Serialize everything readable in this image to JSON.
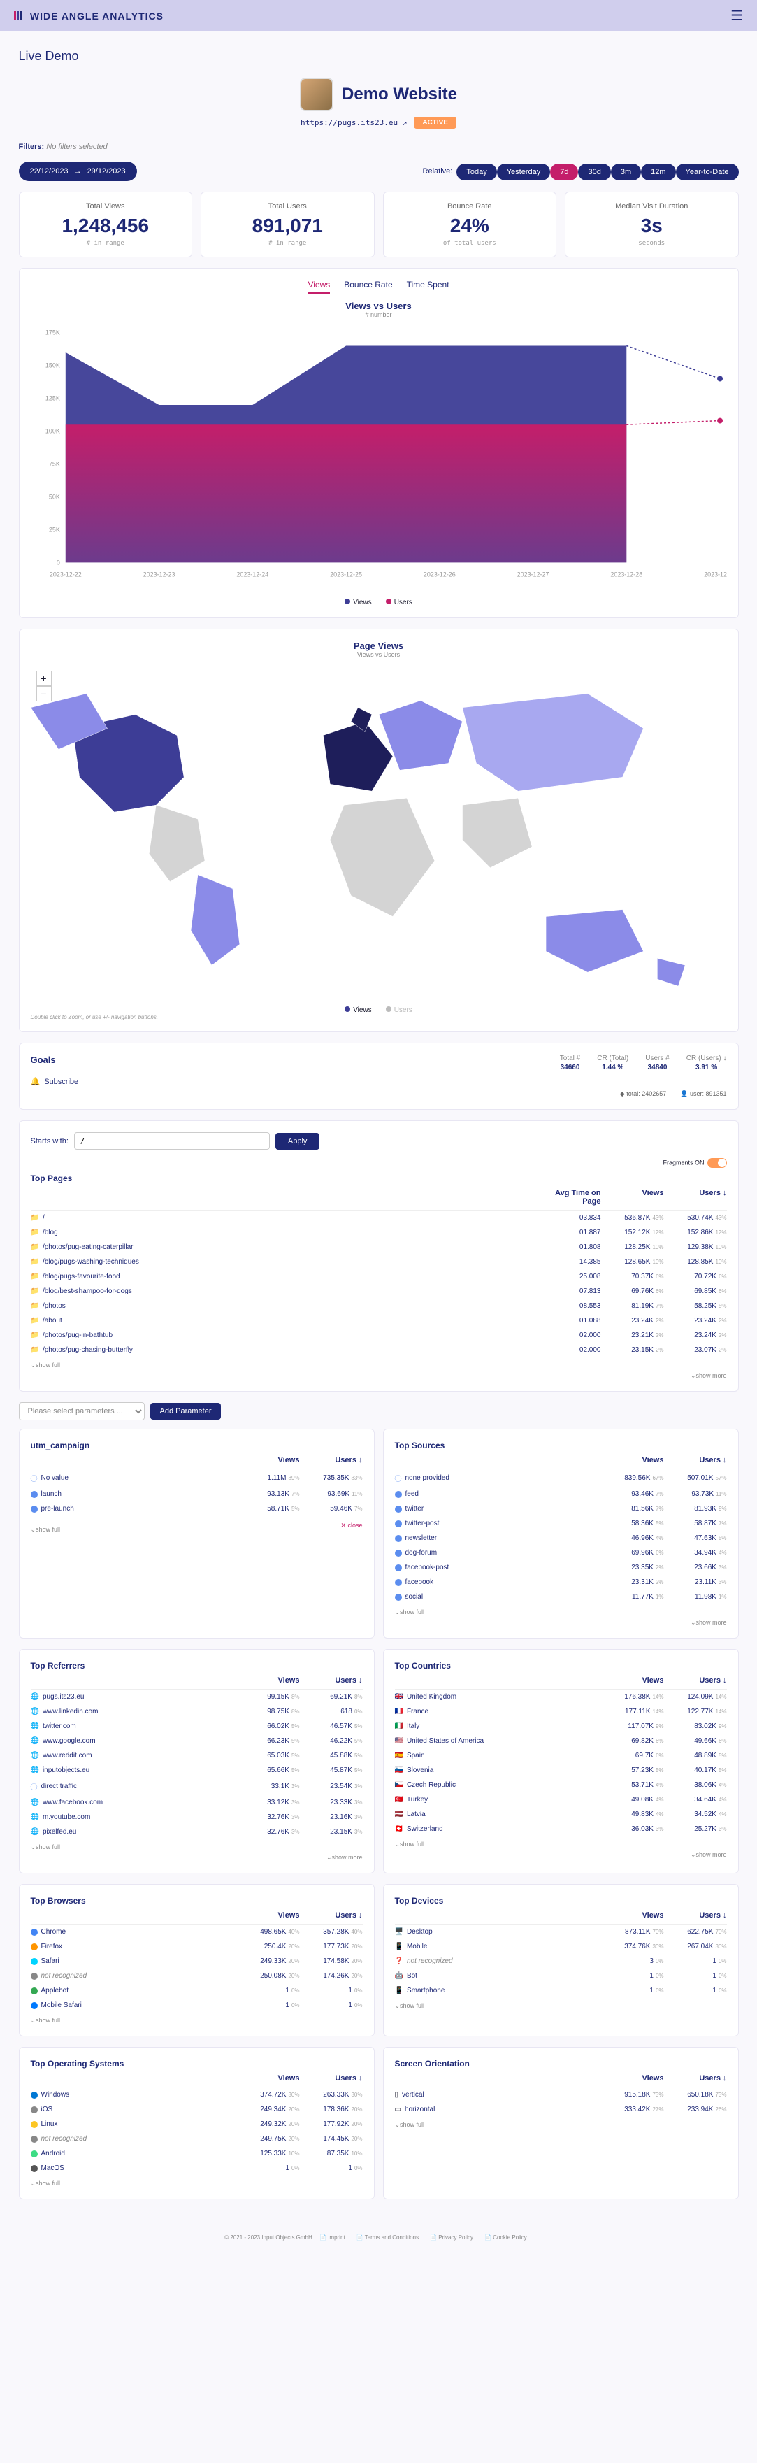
{
  "brand": "WIDE ANGLE ANALYTICS",
  "page_title": "Live Demo",
  "site": {
    "name": "Demo Website",
    "url": "https://pugs.its23.eu",
    "status": "ACTIVE"
  },
  "filters": {
    "label": "Filters:",
    "value": "No filters selected"
  },
  "date": {
    "from": "22/12/2023",
    "to": "29/12/2023",
    "relative_label": "Relative:",
    "pills": [
      "Today",
      "Yesterday",
      "7d",
      "30d",
      "3m",
      "12m",
      "Year-to-Date"
    ],
    "active_idx": 2
  },
  "stats": [
    {
      "label": "Total Views",
      "value": "1,248,456",
      "sub": "# in range"
    },
    {
      "label": "Total Users",
      "value": "891,071",
      "sub": "# in range"
    },
    {
      "label": "Bounce Rate",
      "value": "24%",
      "sub": "of total users"
    },
    {
      "label": "Median Visit Duration",
      "value": "3s",
      "sub": "seconds"
    }
  ],
  "main_chart": {
    "tabs": [
      "Views",
      "Bounce Rate",
      "Time Spent"
    ],
    "active_tab": 0,
    "title": "Views vs Users",
    "sub": "# number",
    "x_labels": [
      "2023-12-22",
      "2023-12-23",
      "2023-12-24",
      "2023-12-25",
      "2023-12-26",
      "2023-12-27",
      "2023-12-28",
      "2023-12-29"
    ],
    "y_ticks": [
      0,
      "25K",
      "50K",
      "75K",
      "100K",
      "125K",
      "150K",
      "175K"
    ],
    "views": [
      160000,
      120000,
      120000,
      165000,
      165000,
      165000,
      165000,
      140000
    ],
    "users": [
      105000,
      105000,
      105000,
      105000,
      105000,
      105000,
      105000,
      108000
    ],
    "colors": {
      "views": "#3d3d96",
      "users": "#c41e6a"
    }
  },
  "map": {
    "title": "Page Views",
    "sub": "Views vs Users",
    "note": "Double click to Zoom, or use +/- navigation buttons.",
    "legend": [
      {
        "label": "Views",
        "color": "#3d3d96"
      },
      {
        "label": "Users",
        "color": "#bbb"
      }
    ]
  },
  "goals": {
    "title": "Goals",
    "cols": [
      {
        "label": "Total #",
        "val": "34660"
      },
      {
        "label": "CR (Total)",
        "val": "1.44 %"
      },
      {
        "label": "Users #",
        "val": "34840"
      },
      {
        "label": "CR (Users) ↓",
        "val": "3.91 %"
      }
    ],
    "items": [
      {
        "icon": "🔔",
        "name": "Subscribe"
      }
    ],
    "footer": [
      {
        "icon": "◆",
        "text": "total: 2402657"
      },
      {
        "icon": "👤",
        "text": "user: 891351"
      }
    ]
  },
  "pages": {
    "search_label": "Starts with:",
    "search_value": "/",
    "apply": "Apply",
    "fragments_label": "Fragments ON",
    "title": "Top Pages",
    "headers": [
      "Avg Time on Page",
      "Views",
      "Users ↓"
    ],
    "rows": [
      {
        "icon": "folder",
        "name": "/",
        "c1": "03.834",
        "c2": "536.87K",
        "p2": "43%",
        "c3": "530.74K",
        "p3": "43%"
      },
      {
        "icon": "folder",
        "name": "/blog",
        "c1": "01.887",
        "c2": "152.12K",
        "p2": "12%",
        "c3": "152.86K",
        "p3": "12%"
      },
      {
        "icon": "folder",
        "name": "/photos/pug-eating-caterpillar",
        "c1": "01.808",
        "c2": "128.25K",
        "p2": "10%",
        "c3": "129.38K",
        "p3": "10%"
      },
      {
        "icon": "folder",
        "name": "/blog/pugs-washing-techniques",
        "c1": "14.385",
        "c2": "128.65K",
        "p2": "10%",
        "c3": "128.85K",
        "p3": "10%"
      },
      {
        "icon": "folder",
        "name": "/blog/pugs-favourite-food",
        "c1": "25.008",
        "c2": "70.37K",
        "p2": "6%",
        "c3": "70.72K",
        "p3": "6%"
      },
      {
        "icon": "folder",
        "name": "/blog/best-shampoo-for-dogs",
        "c1": "07.813",
        "c2": "69.76K",
        "p2": "6%",
        "c3": "69.85K",
        "p3": "6%"
      },
      {
        "icon": "folder",
        "name": "/photos",
        "c1": "08.553",
        "c2": "81.19K",
        "p2": "7%",
        "c3": "58.25K",
        "p3": "5%"
      },
      {
        "icon": "folder",
        "name": "/about",
        "c1": "01.088",
        "c2": "23.24K",
        "p2": "2%",
        "c3": "23.24K",
        "p3": "2%"
      },
      {
        "icon": "folder",
        "name": "/photos/pug-in-bathtub",
        "c1": "02.000",
        "c2": "23.21K",
        "p2": "2%",
        "c3": "23.24K",
        "p3": "2%"
      },
      {
        "icon": "folder",
        "name": "/photos/pug-chasing-butterfly",
        "c1": "02.000",
        "c2": "23.15K",
        "p2": "2%",
        "c3": "23.07K",
        "p3": "2%"
      }
    ]
  },
  "params": {
    "placeholder": "Please select parameters ...",
    "add": "Add Parameter",
    "campaign": {
      "title": "utm_campaign",
      "headers": [
        "Views",
        "Users ↓"
      ],
      "rows": [
        {
          "icon": "info",
          "name": "No value",
          "c1": "1.11M",
          "p1": "89%",
          "c2": "735.35K",
          "p2": "83%"
        },
        {
          "icon": "dot",
          "name": "launch",
          "c1": "93.13K",
          "p1": "7%",
          "c2": "93.69K",
          "p2": "11%"
        },
        {
          "icon": "dot",
          "name": "pre-launch",
          "c1": "58.71K",
          "p1": "5%",
          "c2": "59.46K",
          "p2": "7%"
        }
      ],
      "close": "close"
    },
    "sources": {
      "title": "Top Sources",
      "headers": [
        "Views",
        "Users ↓"
      ],
      "rows": [
        {
          "icon": "info",
          "name": "none provided",
          "c1": "839.56K",
          "p1": "67%",
          "c2": "507.01K",
          "p2": "57%"
        },
        {
          "icon": "dot",
          "name": "feed",
          "c1": "93.46K",
          "p1": "7%",
          "c2": "93.73K",
          "p2": "11%"
        },
        {
          "icon": "dot",
          "name": "twitter",
          "c1": "81.56K",
          "p1": "7%",
          "c2": "81.93K",
          "p2": "9%"
        },
        {
          "icon": "dot",
          "name": "twitter-post",
          "c1": "58.36K",
          "p1": "5%",
          "c2": "58.87K",
          "p2": "7%"
        },
        {
          "icon": "dot",
          "name": "newsletter",
          "c1": "46.96K",
          "p1": "4%",
          "c2": "47.63K",
          "p2": "5%"
        },
        {
          "icon": "dot",
          "name": "dog-forum",
          "c1": "69.96K",
          "p1": "6%",
          "c2": "34.94K",
          "p2": "4%"
        },
        {
          "icon": "dot",
          "name": "facebook-post",
          "c1": "23.35K",
          "p1": "2%",
          "c2": "23.66K",
          "p2": "3%"
        },
        {
          "icon": "dot",
          "name": "facebook",
          "c1": "23.31K",
          "p1": "2%",
          "c2": "23.11K",
          "p2": "3%"
        },
        {
          "icon": "dot",
          "name": "social",
          "c1": "11.77K",
          "p1": "1%",
          "c2": "11.98K",
          "p2": "1%"
        }
      ]
    }
  },
  "referrers": {
    "title": "Top Referrers",
    "headers": [
      "Views",
      "Users ↓"
    ],
    "rows": [
      {
        "icon": "globe",
        "name": "pugs.its23.eu",
        "c1": "99.15K",
        "p1": "8%",
        "c2": "69.21K",
        "p2": "8%"
      },
      {
        "icon": "globe",
        "name": "www.linkedin.com",
        "c1": "98.75K",
        "p1": "8%",
        "c2": "618",
        "p2": "0%"
      },
      {
        "icon": "globe",
        "name": "twitter.com",
        "c1": "66.02K",
        "p1": "5%",
        "c2": "46.57K",
        "p2": "5%"
      },
      {
        "icon": "globe",
        "name": "www.google.com",
        "c1": "66.23K",
        "p1": "5%",
        "c2": "46.22K",
        "p2": "5%"
      },
      {
        "icon": "globe",
        "name": "www.reddit.com",
        "c1": "65.03K",
        "p1": "5%",
        "c2": "45.88K",
        "p2": "5%"
      },
      {
        "icon": "globe",
        "name": "inputobjects.eu",
        "c1": "65.66K",
        "p1": "5%",
        "c2": "45.87K",
        "p2": "5%"
      },
      {
        "icon": "info",
        "name": "direct traffic",
        "c1": "33.1K",
        "p1": "3%",
        "c2": "23.54K",
        "p2": "3%"
      },
      {
        "icon": "globe",
        "name": "www.facebook.com",
        "c1": "33.12K",
        "p1": "3%",
        "c2": "23.33K",
        "p2": "3%"
      },
      {
        "icon": "globe",
        "name": "m.youtube.com",
        "c1": "32.76K",
        "p1": "3%",
        "c2": "23.16K",
        "p2": "3%"
      },
      {
        "icon": "globe",
        "name": "pixelfed.eu",
        "c1": "32.76K",
        "p1": "3%",
        "c2": "23.15K",
        "p2": "3%"
      }
    ]
  },
  "countries": {
    "title": "Top Countries",
    "headers": [
      "Views",
      "Users ↓"
    ],
    "rows": [
      {
        "flag": "🇬🇧",
        "name": "United Kingdom",
        "c1": "176.38K",
        "p1": "14%",
        "c2": "124.09K",
        "p2": "14%"
      },
      {
        "flag": "🇫🇷",
        "name": "France",
        "c1": "177.11K",
        "p1": "14%",
        "c2": "122.77K",
        "p2": "14%"
      },
      {
        "flag": "🇮🇹",
        "name": "Italy",
        "c1": "117.07K",
        "p1": "9%",
        "c2": "83.02K",
        "p2": "9%"
      },
      {
        "flag": "🇺🇸",
        "name": "United States of America",
        "c1": "69.82K",
        "p1": "6%",
        "c2": "49.66K",
        "p2": "6%"
      },
      {
        "flag": "🇪🇸",
        "name": "Spain",
        "c1": "69.7K",
        "p1": "6%",
        "c2": "48.89K",
        "p2": "5%"
      },
      {
        "flag": "🇸🇮",
        "name": "Slovenia",
        "c1": "57.23K",
        "p1": "5%",
        "c2": "40.17K",
        "p2": "5%"
      },
      {
        "flag": "🇨🇿",
        "name": "Czech Republic",
        "c1": "53.71K",
        "p1": "4%",
        "c2": "38.06K",
        "p2": "4%"
      },
      {
        "flag": "🇹🇷",
        "name": "Turkey",
        "c1": "49.08K",
        "p1": "4%",
        "c2": "34.64K",
        "p2": "4%"
      },
      {
        "flag": "🇱🇻",
        "name": "Latvia",
        "c1": "49.83K",
        "p1": "4%",
        "c2": "34.52K",
        "p2": "4%"
      },
      {
        "flag": "🇨🇭",
        "name": "Switzerland",
        "c1": "36.03K",
        "p1": "3%",
        "c2": "25.27K",
        "p2": "3%"
      }
    ]
  },
  "browsers": {
    "title": "Top Browsers",
    "headers": [
      "Views",
      "Users ↓"
    ],
    "rows": [
      {
        "color": "#4285f4",
        "name": "Chrome",
        "c1": "498.65K",
        "p1": "40%",
        "c2": "357.28K",
        "p2": "40%"
      },
      {
        "color": "#ff9500",
        "name": "Firefox",
        "c1": "250.4K",
        "p1": "20%",
        "c2": "177.73K",
        "p2": "20%"
      },
      {
        "color": "#00d4ff",
        "name": "Safari",
        "c1": "249.33K",
        "p1": "20%",
        "c2": "174.58K",
        "p2": "20%"
      },
      {
        "color": "#888",
        "name": "not recognized",
        "italic": true,
        "c1": "250.08K",
        "p1": "20%",
        "c2": "174.26K",
        "p2": "20%"
      },
      {
        "color": "#34a853",
        "name": "Applebot",
        "c1": "1",
        "p1": "0%",
        "c2": "1",
        "p2": "0%"
      },
      {
        "color": "#007aff",
        "name": "Mobile Safari",
        "c1": "1",
        "p1": "0%",
        "c2": "1",
        "p2": "0%"
      }
    ]
  },
  "devices": {
    "title": "Top Devices",
    "headers": [
      "Views",
      "Users ↓"
    ],
    "rows": [
      {
        "icon": "🖥️",
        "name": "Desktop",
        "c1": "873.11K",
        "p1": "70%",
        "c2": "622.75K",
        "p2": "70%"
      },
      {
        "icon": "📱",
        "name": "Mobile",
        "c1": "374.76K",
        "p1": "30%",
        "c2": "267.04K",
        "p2": "30%"
      },
      {
        "icon": "❓",
        "name": "not recognized",
        "italic": true,
        "c1": "3",
        "p1": "0%",
        "c2": "1",
        "p2": "0%"
      },
      {
        "icon": "🤖",
        "name": "Bot",
        "c1": "1",
        "p1": "0%",
        "c2": "1",
        "p2": "0%"
      },
      {
        "icon": "📱",
        "name": "Smartphone",
        "c1": "1",
        "p1": "0%",
        "c2": "1",
        "p2": "0%"
      }
    ]
  },
  "os": {
    "title": "Top Operating Systems",
    "headers": [
      "Views",
      "Users ↓"
    ],
    "rows": [
      {
        "color": "#0078d4",
        "name": "Windows",
        "c1": "374.72K",
        "p1": "30%",
        "c2": "263.33K",
        "p2": "30%"
      },
      {
        "color": "#888",
        "name": "iOS",
        "c1": "249.34K",
        "p1": "20%",
        "c2": "178.36K",
        "p2": "20%"
      },
      {
        "color": "#fcc624",
        "name": "Linux",
        "c1": "249.32K",
        "p1": "20%",
        "c2": "177.92K",
        "p2": "20%"
      },
      {
        "color": "#888",
        "name": "not recognized",
        "italic": true,
        "c1": "249.75K",
        "p1": "20%",
        "c2": "174.45K",
        "p2": "20%"
      },
      {
        "color": "#3ddc84",
        "name": "Android",
        "c1": "125.33K",
        "p1": "10%",
        "c2": "87.35K",
        "p2": "10%"
      },
      {
        "color": "#555",
        "name": "MacOS",
        "c1": "1",
        "p1": "0%",
        "c2": "1",
        "p2": "0%"
      }
    ]
  },
  "orientation": {
    "title": "Screen Orientation",
    "headers": [
      "Views",
      "Users ↓"
    ],
    "rows": [
      {
        "icon": "▯",
        "name": "vertical",
        "c1": "915.18K",
        "p1": "73%",
        "c2": "650.18K",
        "p2": "73%"
      },
      {
        "icon": "▭",
        "name": "horizontal",
        "c1": "333.42K",
        "p1": "27%",
        "c2": "233.94K",
        "p2": "26%"
      }
    ]
  },
  "labels": {
    "show_full": "⌄show full",
    "show_more": "⌄show more"
  },
  "footer": {
    "copyright": "© 2021 - 2023 Input Objects GmbH",
    "links": [
      "Imprint",
      "Terms and Conditions",
      "Privacy Policy",
      "Cookie Policy"
    ]
  }
}
